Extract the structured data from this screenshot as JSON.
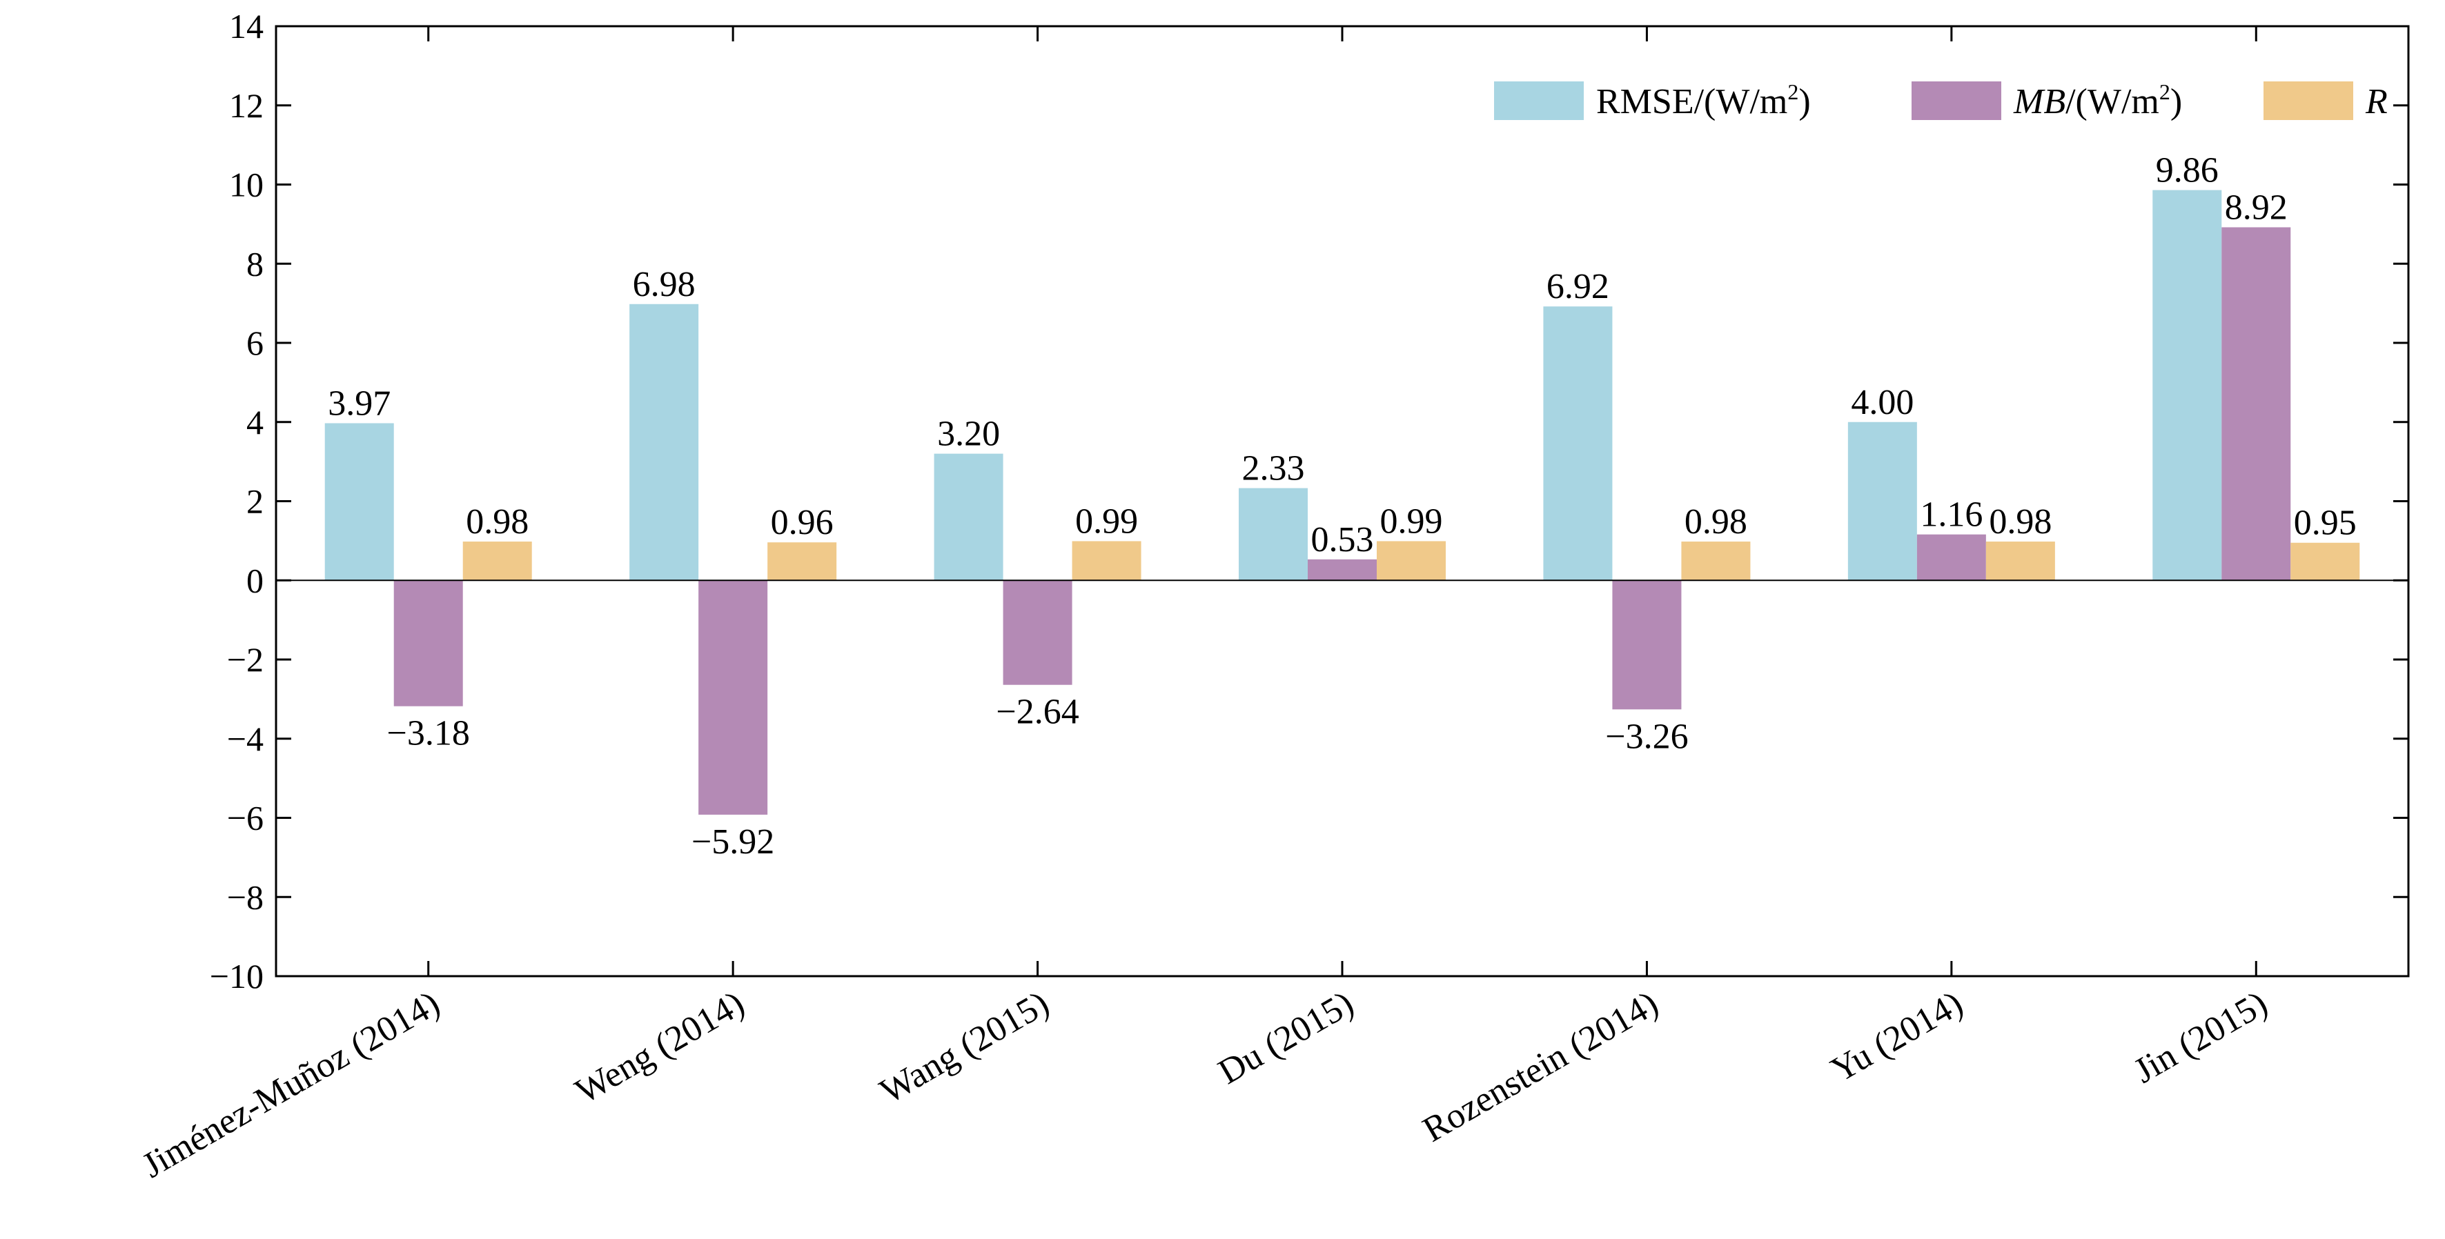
{
  "chart_data": {
    "type": "bar",
    "categories": [
      "Jiménez-Muñoz (2014)",
      "Weng (2014)",
      "Wang (2015)",
      "Du (2015)",
      "Rozenstein (2014)",
      "Yu (2014)",
      "Jin (2015)"
    ],
    "series": [
      {
        "name": "RMSE/(W/m²)",
        "legend_main": "RMSE/(W/m",
        "legend_sup": "2",
        "legend_tail": ")",
        "color": "#a8d5e2",
        "values": [
          3.97,
          6.98,
          3.2,
          2.33,
          6.92,
          4.0,
          9.86
        ],
        "labels": [
          "3.97",
          "6.98",
          "3.20",
          "2.33",
          "6.92",
          "4.00",
          "9.86"
        ]
      },
      {
        "name": "MB/(W/m²)",
        "legend_italic": "MB",
        "legend_main": "/(W/m",
        "legend_sup": "2",
        "legend_tail": ")",
        "color": "#b48ab5",
        "values": [
          -3.18,
          -5.92,
          -2.64,
          0.53,
          -3.26,
          1.16,
          8.92
        ],
        "labels": [
          "−3.18",
          "−5.92",
          "−2.64",
          "0.53",
          "−3.26",
          "1.16",
          "8.92"
        ]
      },
      {
        "name": "R",
        "legend_italic": "R",
        "color": "#f0c98a",
        "values": [
          0.98,
          0.96,
          0.99,
          0.99,
          0.98,
          0.98,
          0.95
        ],
        "labels": [
          "0.98",
          "0.96",
          "0.99",
          "0.99",
          "0.98",
          "0.98",
          "0.95"
        ]
      }
    ],
    "ylim": [
      -10,
      14
    ],
    "yticks": [
      -10,
      -8,
      -6,
      -4,
      -2,
      0,
      2,
      4,
      6,
      8,
      10,
      12,
      14
    ],
    "ytick_labels": [
      "−10",
      "−8",
      "−6",
      "−4",
      "−2",
      "0",
      "2",
      "4",
      "6",
      "8",
      "10",
      "12",
      "14"
    ],
    "legend_position": "top-right",
    "grid": false
  }
}
